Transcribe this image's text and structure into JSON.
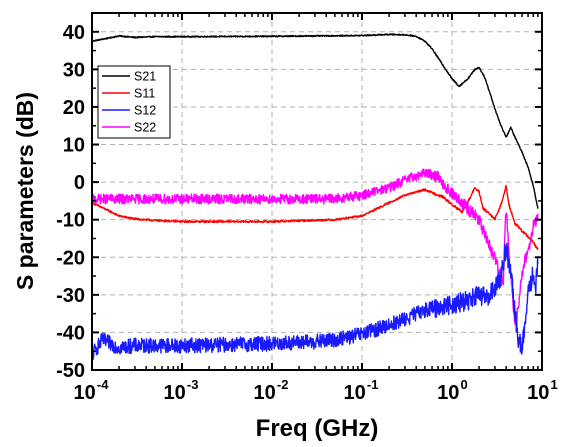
{
  "chart_data": {
    "type": "line",
    "title": "",
    "xlabel": "Freq (GHz)",
    "ylabel": "S parameters (dB)",
    "xscale": "log",
    "xlim": [
      0.0001,
      10
    ],
    "ylim": [
      -50,
      45
    ],
    "grid": true,
    "legend_position": "top-left",
    "x_ticks": [
      {
        "value": 0.0001,
        "base": "10",
        "exp": "-4"
      },
      {
        "value": 0.001,
        "base": "10",
        "exp": "-3"
      },
      {
        "value": 0.01,
        "base": "10",
        "exp": "-2"
      },
      {
        "value": 0.1,
        "base": "10",
        "exp": "-1"
      },
      {
        "value": 1,
        "base": "10",
        "exp": "0"
      },
      {
        "value": 10,
        "base": "10",
        "exp": "1"
      }
    ],
    "y_ticks": [
      40,
      30,
      20,
      10,
      0,
      -10,
      -20,
      -30,
      -40,
      -50
    ],
    "series": [
      {
        "name": "S21",
        "color": "#000000",
        "noise": 0.15,
        "x": [
          0.0001,
          0.00015,
          0.0002,
          0.0003,
          0.0005,
          0.001,
          0.01,
          0.1,
          0.2,
          0.3,
          0.4,
          0.5,
          0.6,
          0.8,
          1.0,
          1.2,
          1.5,
          1.8,
          2.0,
          2.3,
          2.7,
          3.0,
          3.5,
          4.0,
          4.5,
          5.0,
          6.0,
          7.0,
          8.0,
          9.0
        ],
        "y": [
          37.5,
          38.3,
          38.9,
          38.5,
          38.7,
          38.7,
          38.8,
          39.0,
          39.3,
          39.2,
          38.8,
          37.5,
          35.5,
          31.0,
          27.5,
          25.5,
          27.5,
          30.0,
          30.5,
          28.0,
          23.0,
          19.5,
          15.0,
          12.0,
          14.5,
          12.0,
          8.0,
          4.0,
          -1.0,
          -7.0
        ]
      },
      {
        "name": "S11",
        "color": "#ff0000",
        "noise": 0.25,
        "x": [
          0.0001,
          0.00015,
          0.0002,
          0.0003,
          0.0005,
          0.001,
          0.01,
          0.05,
          0.1,
          0.2,
          0.3,
          0.5,
          0.8,
          1.0,
          1.3,
          1.6,
          1.8,
          2.0,
          2.2,
          2.5,
          3.0,
          3.5,
          4.0,
          4.3,
          4.7,
          5.0,
          5.5,
          6.0,
          7.0,
          8.0,
          9.0
        ],
        "y": [
          -5.5,
          -7.5,
          -9.0,
          -9.8,
          -10.2,
          -10.5,
          -10.5,
          -10.0,
          -9.0,
          -5.5,
          -3.5,
          -2.0,
          -4.0,
          -6.0,
          -8.0,
          -4.0,
          -1.5,
          -2.5,
          -7.0,
          -8.0,
          -10.0,
          -6.0,
          -1.0,
          -6.0,
          -9.0,
          -11.0,
          -12.0,
          -13.0,
          -14.5,
          -16.0,
          -18.0
        ]
      },
      {
        "name": "S12",
        "color": "#1a1aff",
        "noise": 2.0,
        "x": [
          0.0001,
          0.00013,
          0.0002,
          0.0003,
          0.001,
          0.01,
          0.03,
          0.05,
          0.1,
          0.2,
          0.3,
          0.5,
          0.8,
          1.0,
          1.5,
          2.0,
          2.5,
          3.0,
          3.5,
          4.0,
          4.3,
          4.7,
          5.0,
          5.5,
          6.0,
          6.5,
          7.0,
          8.0,
          8.5,
          9.0
        ],
        "y": [
          -46.0,
          -42.0,
          -44.0,
          -43.5,
          -43.5,
          -43.0,
          -42.5,
          -42.0,
          -40.5,
          -38.0,
          -36.5,
          -34.0,
          -33.0,
          -32.5,
          -31.5,
          -30.0,
          -31.0,
          -28.0,
          -25.0,
          -17.0,
          -22.0,
          -28.0,
          -35.0,
          -42.0,
          -44.0,
          -38.0,
          -30.0,
          -24.0,
          -28.0,
          -22.0
        ]
      },
      {
        "name": "S22",
        "color": "#ff00ff",
        "noise": 1.3,
        "x": [
          0.0001,
          0.0003,
          0.001,
          0.01,
          0.05,
          0.1,
          0.2,
          0.3,
          0.5,
          0.7,
          0.9,
          1.2,
          1.5,
          1.8,
          2.0,
          2.3,
          2.6,
          3.0,
          3.3,
          3.7,
          4.0,
          4.3,
          4.7,
          5.0,
          5.5,
          6.0,
          7.0,
          8.0,
          9.0
        ],
        "y": [
          -4.5,
          -4.5,
          -4.5,
          -4.5,
          -4.5,
          -3.5,
          -1.5,
          0.5,
          2.5,
          1.5,
          -2.0,
          -5.0,
          -7.0,
          -9.0,
          -10.0,
          -14.0,
          -17.0,
          -20.0,
          -24.0,
          -27.0,
          -6.0,
          -20.0,
          -30.0,
          -38.0,
          -32.0,
          -24.0,
          -18.0,
          -12.0,
          -9.0
        ]
      }
    ]
  }
}
